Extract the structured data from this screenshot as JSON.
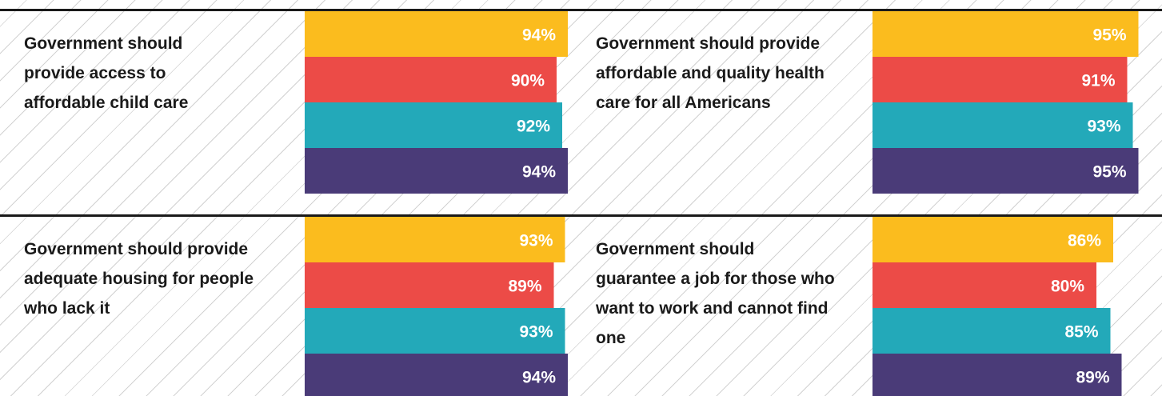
{
  "colors": [
    "#fbbc1e",
    "#ec4b47",
    "#23a9b9",
    "#4a3b78"
  ],
  "chart_data": [
    {
      "type": "bar",
      "title": "Government should provide access to affordable child care",
      "values": [
        94,
        90,
        92,
        94
      ],
      "labels": [
        "94%",
        "90%",
        "92%",
        "94%"
      ],
      "xlim": [
        0,
        100
      ]
    },
    {
      "type": "bar",
      "title": "Government should provide affordable and quality health care for all Americans",
      "values": [
        95,
        91,
        93,
        95
      ],
      "labels": [
        "95%",
        "91%",
        "93%",
        "95%"
      ],
      "xlim": [
        0,
        100
      ]
    },
    {
      "type": "bar",
      "title": "Government should provide adequate housing for people who lack it",
      "values": [
        93,
        89,
        93,
        94
      ],
      "labels": [
        "93%",
        "89%",
        "93%",
        "94%"
      ],
      "xlim": [
        0,
        100
      ]
    },
    {
      "type": "bar",
      "title": "Government should guarantee a job for those who want to work and cannot find one",
      "values": [
        86,
        80,
        85,
        89
      ],
      "labels": [
        "86%",
        "80%",
        "85%",
        "89%"
      ],
      "xlim": [
        0,
        100
      ]
    }
  ]
}
